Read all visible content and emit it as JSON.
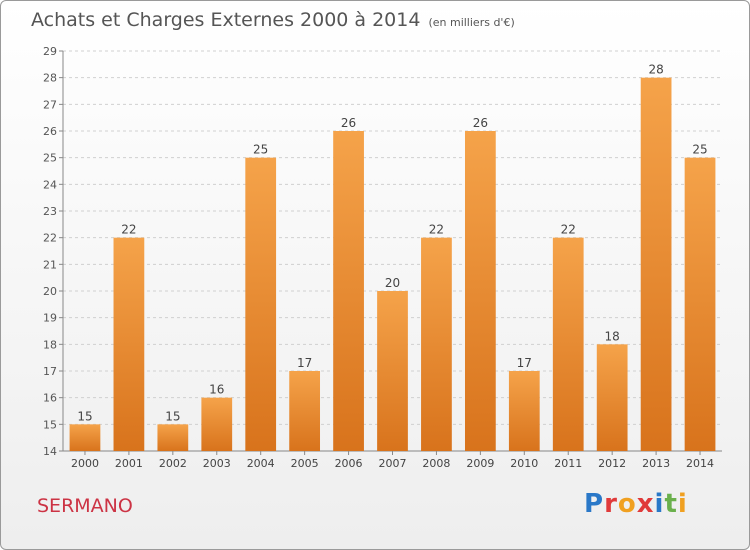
{
  "title": "Achats et Charges Externes 2000 à 2014",
  "subtitle": "(en milliers d'€)",
  "town": "SERMANO",
  "logo": {
    "letters": [
      "P",
      "r",
      "o",
      "x",
      "i",
      "t",
      "i"
    ],
    "colors": [
      "#2a78c8",
      "#e03a3a",
      "#f0a020",
      "#e03a3a",
      "#2a78c8",
      "#6ab04c",
      "#f0a020"
    ]
  },
  "colors": {
    "bar_top": "#f5a34a",
    "bar_bottom": "#d8731c",
    "grid": "#d0d0d0"
  },
  "chart_data": {
    "type": "bar",
    "title": "Achats et Charges Externes 2000 à 2014",
    "categories": [
      "2000",
      "2001",
      "2002",
      "2003",
      "2004",
      "2005",
      "2006",
      "2007",
      "2008",
      "2009",
      "2010",
      "2011",
      "2012",
      "2013",
      "2014"
    ],
    "values": [
      15,
      22,
      15,
      16,
      25,
      17,
      26,
      20,
      22,
      26,
      17,
      22,
      18,
      28,
      25
    ],
    "ylim": [
      14,
      29
    ],
    "yticks": [
      14,
      15,
      16,
      17,
      18,
      19,
      20,
      21,
      22,
      23,
      24,
      25,
      26,
      27,
      28,
      29
    ],
    "grid": true,
    "data_labels": true
  }
}
